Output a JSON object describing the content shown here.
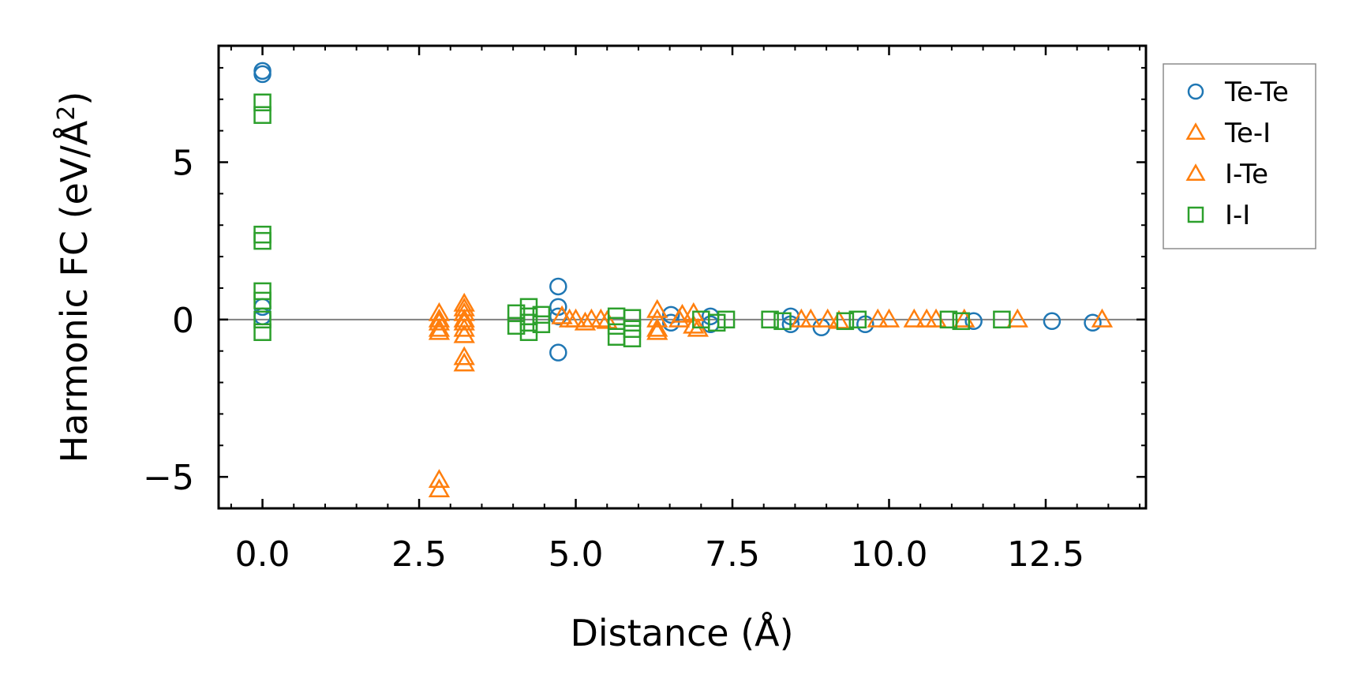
{
  "chart_data": {
    "type": "scatter",
    "xlabel": "Distance (Å)",
    "ylabel": "Harmonic FC (eV/Å",
    "ylabel_sup": "2",
    "ylabel_end": ")",
    "xlim": [
      -0.7,
      14.1
    ],
    "ylim": [
      -6.0,
      8.7
    ],
    "xticks": [
      0.0,
      2.5,
      5.0,
      7.5,
      10.0,
      12.5
    ],
    "xtick_labels": [
      "0.0",
      "2.5",
      "5.0",
      "7.5",
      "10.0",
      "12.5"
    ],
    "yticks": [
      -5,
      0,
      5
    ],
    "ytick_labels": [
      "−5",
      "0",
      "5"
    ],
    "x_minor_step": 0.5,
    "y_minor_step": 1,
    "zero_line": true,
    "legend_position": "outside-top-right",
    "series": [
      {
        "name": "Te-Te",
        "marker": "circle",
        "color": "#1f77b4",
        "points": [
          [
            0,
            7.9
          ],
          [
            0,
            7.8
          ],
          [
            0,
            0.4
          ],
          [
            0,
            0.1
          ],
          [
            4.72,
            1.05
          ],
          [
            4.72,
            0.4
          ],
          [
            4.72,
            0.1
          ],
          [
            4.72,
            -1.05
          ],
          [
            6.52,
            0.15
          ],
          [
            6.52,
            -0.1
          ],
          [
            7.15,
            0.1
          ],
          [
            7.15,
            -0.15
          ],
          [
            8.43,
            0.1
          ],
          [
            8.43,
            -0.15
          ],
          [
            8.92,
            -0.25
          ],
          [
            9.62,
            -0.15
          ],
          [
            11.35,
            -0.05
          ],
          [
            12.6,
            -0.05
          ],
          [
            13.25,
            -0.1
          ]
        ]
      },
      {
        "name": "Te-I",
        "marker": "triangle",
        "color": "#ff7f0e",
        "points": [
          [
            2.82,
            0.2
          ],
          [
            2.82,
            -0.1
          ],
          [
            2.82,
            -0.4
          ],
          [
            2.82,
            -5.1
          ],
          [
            3.22,
            0.5
          ],
          [
            3.22,
            0.2
          ],
          [
            3.22,
            -0.1
          ],
          [
            3.22,
            -0.5
          ],
          [
            3.22,
            -1.2
          ],
          [
            4.78,
            0.1
          ],
          [
            5.0,
            0.0
          ],
          [
            5.25,
            0.0
          ],
          [
            5.5,
            -0.05
          ],
          [
            6.3,
            0.3
          ],
          [
            6.3,
            0.0
          ],
          [
            6.3,
            -0.3
          ],
          [
            6.65,
            0.0
          ],
          [
            6.88,
            0.2
          ],
          [
            6.88,
            -0.2
          ],
          [
            8.75,
            0.0
          ],
          [
            9.02,
            0.0
          ],
          [
            9.82,
            0.0
          ],
          [
            10.4,
            0.0
          ],
          [
            10.75,
            0.0
          ],
          [
            12.05,
            0.0
          ],
          [
            13.4,
            0.0
          ]
        ]
      },
      {
        "name": "I-Te",
        "marker": "triangle",
        "color": "#ff7f0e",
        "points": [
          [
            2.82,
            0.0
          ],
          [
            2.82,
            -0.3
          ],
          [
            2.82,
            -5.4
          ],
          [
            3.22,
            0.35
          ],
          [
            3.22,
            0.0
          ],
          [
            3.22,
            -0.3
          ],
          [
            3.22,
            -1.4
          ],
          [
            4.9,
            0.0
          ],
          [
            5.15,
            -0.1
          ],
          [
            5.4,
            0.0
          ],
          [
            6.3,
            -0.4
          ],
          [
            6.7,
            0.15
          ],
          [
            6.95,
            -0.3
          ],
          [
            8.6,
            0.0
          ],
          [
            9.2,
            -0.05
          ],
          [
            10.0,
            0.0
          ],
          [
            10.6,
            0.0
          ],
          [
            11.2,
            0.0
          ]
        ]
      },
      {
        "name": "I-I",
        "marker": "square",
        "color": "#2ca02c",
        "points": [
          [
            0,
            6.9
          ],
          [
            0,
            6.5
          ],
          [
            0,
            2.7
          ],
          [
            0,
            2.5
          ],
          [
            0,
            0.9
          ],
          [
            0,
            0.6
          ],
          [
            0,
            0.0
          ],
          [
            0,
            -0.4
          ],
          [
            4.05,
            0.2
          ],
          [
            4.05,
            -0.2
          ],
          [
            4.25,
            0.4
          ],
          [
            4.25,
            0.1
          ],
          [
            4.25,
            -0.1
          ],
          [
            4.25,
            -0.4
          ],
          [
            4.45,
            0.15
          ],
          [
            4.45,
            -0.15
          ],
          [
            5.65,
            0.1
          ],
          [
            5.65,
            -0.2
          ],
          [
            5.65,
            -0.55
          ],
          [
            5.9,
            0.05
          ],
          [
            5.9,
            -0.3
          ],
          [
            5.9,
            -0.6
          ],
          [
            7.0,
            0.0
          ],
          [
            7.25,
            -0.1
          ],
          [
            7.4,
            0.0
          ],
          [
            8.1,
            0.0
          ],
          [
            8.3,
            -0.05
          ],
          [
            9.3,
            -0.05
          ],
          [
            9.5,
            0.0
          ],
          [
            10.95,
            0.0
          ],
          [
            11.15,
            -0.05
          ],
          [
            11.8,
            0.0
          ]
        ]
      }
    ]
  }
}
